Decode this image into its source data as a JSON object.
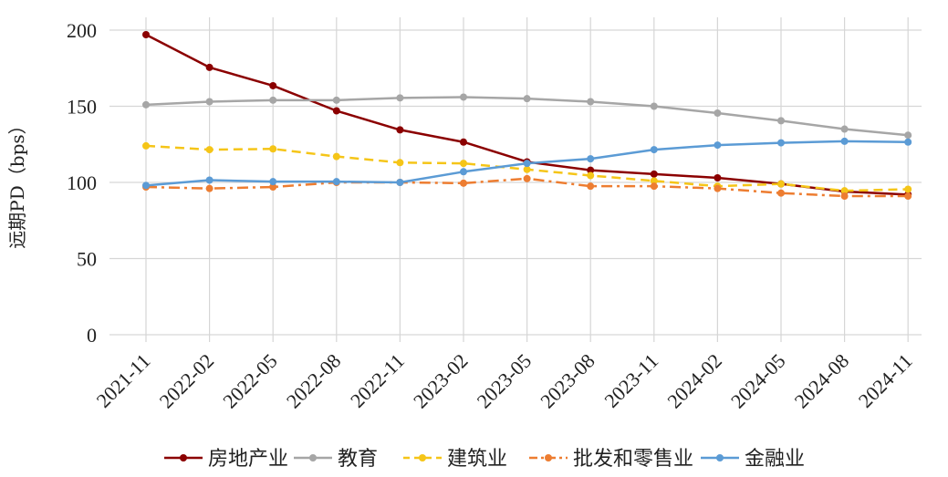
{
  "chart_data": {
    "type": "line",
    "title": "",
    "xlabel": "",
    "ylabel": "远期PD（bps）",
    "categories": [
      "2021-11",
      "2022-02",
      "2022-05",
      "2022-08",
      "2022-11",
      "2023-02",
      "2023-05",
      "2023-08",
      "2023-11",
      "2024-02",
      "2024-05",
      "2024-08",
      "2024-11"
    ],
    "ylim": [
      0,
      200
    ],
    "yticks": [
      "0",
      "50",
      "100",
      "150",
      "200"
    ],
    "grid": true,
    "legend_position": "bottom",
    "series": [
      {
        "name": "房地产业",
        "color": "#8B0000",
        "dash": "solid",
        "values": [
          197,
          175.5,
          163.5,
          147,
          134.5,
          126.5,
          113.5,
          108,
          105.5,
          103,
          99,
          94,
          92
        ]
      },
      {
        "name": "教育",
        "color": "#A6A6A6",
        "dash": "solid",
        "values": [
          151,
          153,
          154,
          154,
          155.5,
          156,
          155,
          153,
          150,
          145.5,
          140.5,
          135,
          131
        ]
      },
      {
        "name": "建筑业",
        "color": "#F5C518",
        "dash": "dashed",
        "values": [
          124,
          121.5,
          122,
          117,
          113,
          112.5,
          108.5,
          104.5,
          101,
          97.5,
          99,
          94.5,
          95.5
        ]
      },
      {
        "name": "批发和零售业",
        "color": "#ED7D31",
        "dash": "dashdot",
        "values": [
          97,
          96,
          97,
          100,
          100,
          99.5,
          102.5,
          97.5,
          97.5,
          96,
          93,
          91,
          91
        ]
      },
      {
        "name": "金融业",
        "color": "#5B9BD5",
        "dash": "solid",
        "values": [
          98,
          101.5,
          100.5,
          100.5,
          100,
          107,
          112.5,
          115.5,
          121.5,
          124.5,
          126,
          127,
          126.5
        ]
      }
    ]
  }
}
